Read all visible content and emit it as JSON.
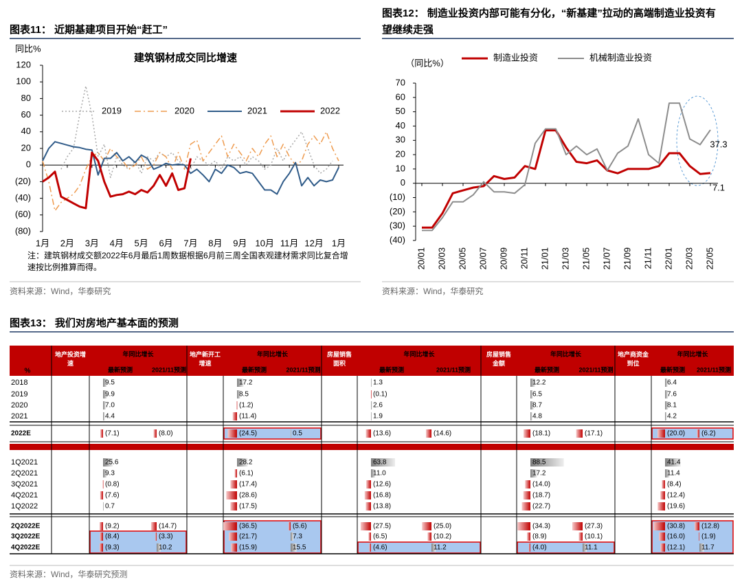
{
  "fig11": {
    "label": "图表11：",
    "title": "近期基建项目开始“赶工”",
    "note": "注：建筑钢材成交额2022年6月最后1周数据根据6月前三周全国表观建材需求同比复合增速按比例推算而得。",
    "source": "资料来源：Wind，华泰研究"
  },
  "fig12": {
    "label": "图表12：",
    "title": "制造业投资内部可能有分化，“新基建”拉动的高端制造业投资有望继续走强",
    "source": "资料来源：Wind，华泰研究"
  },
  "chart_data": [
    {
      "type": "line",
      "title": "建筑钢材成交同比增速",
      "ylabel": "同比%",
      "categories": [
        "1月",
        null,
        null,
        null,
        "2月",
        null,
        null,
        null,
        "3月",
        null,
        null,
        null,
        "4月",
        null,
        null,
        null,
        "5月",
        null,
        null,
        null,
        "6月",
        null,
        null,
        null,
        "7月",
        null,
        null,
        null,
        "8月",
        null,
        null,
        null,
        "9月",
        null,
        null,
        null,
        "10月",
        null,
        null,
        null,
        "11月",
        null,
        null,
        null,
        "12月",
        null,
        null,
        null,
        "1月"
      ],
      "series": [
        {
          "name": "2019",
          "color": "#a6a6a6",
          "linestyle": "dotted",
          "linewidth": 1.5,
          "values": [
            null,
            null,
            null,
            -5,
            10,
            20,
            60,
            95,
            60,
            10,
            25,
            -15,
            10,
            0,
            -5,
            5,
            -10,
            10,
            5,
            15,
            10,
            15,
            5,
            0,
            -5,
            10,
            5,
            0,
            5,
            -5,
            10,
            5,
            10,
            0,
            10,
            5,
            -5,
            0,
            20,
            5,
            20,
            30,
            40,
            20,
            0,
            -10,
            -5,
            5,
            null
          ]
        },
        {
          "name": "2020",
          "color": "#ee9a4d",
          "linestyle": "dashdot",
          "linewidth": 1.5,
          "values": [
            5,
            -20,
            -55,
            -45,
            -40,
            -35,
            -25,
            -5,
            10,
            15,
            5,
            20,
            10,
            5,
            -5,
            0,
            10,
            -5,
            0,
            15,
            10,
            -5,
            15,
            -5,
            25,
            30,
            5,
            15,
            25,
            35,
            10,
            25,
            15,
            5,
            20,
            10,
            25,
            35,
            10,
            25,
            10,
            0,
            5,
            25,
            35,
            25,
            40,
            20,
            5
          ]
        },
        {
          "name": "2021",
          "color": "#2e5a88",
          "linestyle": "solid",
          "linewidth": 2,
          "values": [
            5,
            20,
            28,
            26,
            24,
            22,
            21,
            19,
            18,
            -12,
            8,
            8,
            15,
            5,
            10,
            3,
            12,
            8,
            -5,
            -2,
            2,
            0,
            1,
            0,
            -10,
            -5,
            -12,
            -20,
            -5,
            -10,
            0,
            -3,
            -10,
            -8,
            -10,
            -20,
            -30,
            -30,
            -35,
            -20,
            -10,
            3,
            -25,
            -15,
            -25,
            -18,
            -20,
            -18,
            -3
          ]
        },
        {
          "name": "2022",
          "color": "#c00000",
          "linestyle": "solid",
          "linewidth": 3,
          "values": [
            -20,
            -15,
            -8,
            -38,
            -42,
            -46,
            -50,
            -52,
            15,
            5,
            -20,
            -38,
            -36,
            -35,
            -32,
            -35,
            -30,
            -33,
            -25,
            -12,
            -25,
            -10,
            -30,
            -28,
            8,
            null,
            null,
            null,
            null,
            null,
            null,
            null,
            null,
            null,
            null,
            null,
            null,
            null,
            null,
            null,
            null,
            null,
            null,
            null,
            null,
            null,
            null,
            null,
            null
          ]
        }
      ],
      "ylim": [
        -80,
        120
      ],
      "yticks": [
        120,
        100,
        80,
        60,
        40,
        20,
        0,
        {
          "value": -20,
          "label": "(20)"
        },
        {
          "value": -40,
          "label": "(40)"
        },
        {
          "value": -60,
          "label": "(60)"
        },
        {
          "value": -80,
          "label": "(80)"
        }
      ],
      "legend": "upper center"
    },
    {
      "type": "line",
      "ylabel": "（同比%）",
      "categories": [
        "20/01",
        null,
        "20/03",
        null,
        "20/05",
        null,
        "20/07",
        null,
        "20/09",
        null,
        "20/11",
        null,
        "21/01",
        null,
        "21/03",
        null,
        "21/05",
        null,
        "21/07",
        null,
        "21/09",
        null,
        "21/11",
        null,
        "22/01",
        null,
        "22/03",
        null,
        "22/05"
      ],
      "series": [
        {
          "name": "制造业投资",
          "color": "#c00000",
          "linestyle": "solid",
          "linewidth": 3,
          "values": [
            -31,
            -31,
            -21,
            -7,
            -5,
            -3,
            -2,
            5,
            3,
            4,
            12,
            10,
            37,
            37,
            25,
            15,
            14,
            16,
            9,
            7,
            10,
            10,
            10,
            12,
            21,
            21,
            12,
            6.5,
            7.1
          ]
        },
        {
          "name": "机械制造业投资",
          "color": "#8c8c8c",
          "linestyle": "solid",
          "linewidth": 2,
          "values": [
            -33,
            -33,
            -24,
            -13,
            -13,
            -8,
            1,
            -6,
            -6,
            -7,
            -1,
            28,
            38,
            38,
            20,
            26,
            20,
            24,
            9,
            21,
            26,
            45,
            20,
            14,
            56,
            56,
            31,
            27,
            37.3
          ]
        }
      ],
      "ylim": [
        -40,
        70
      ],
      "yticks": [
        70,
        60,
        50,
        40,
        30,
        20,
        10,
        0,
        {
          "value": -10,
          "label": "(10)"
        },
        {
          "value": -20,
          "label": "(20)"
        },
        {
          "value": -30,
          "label": "(30)"
        },
        {
          "value": -40,
          "label": "(40)"
        }
      ],
      "legend": "top",
      "last_value_labels": true
    }
  ],
  "fig13": {
    "label": "图表13：",
    "title": "我们对房地产基本面的预测",
    "corner": "%",
    "subheader": "年同比增长",
    "columns": [
      "最新预测",
      "2021/11预测"
    ],
    "groups": [
      "地产投资增速",
      "地产新开工增速",
      "房屋销售面积",
      "房屋销售金额",
      "地产商资金到位"
    ],
    "rows": [
      {
        "name": "2018",
        "values": [
          [
            9.5
          ],
          [
            17.2
          ],
          [
            1.3
          ],
          [
            12.2
          ],
          [
            6.4
          ]
        ],
        "value_labels": [
          [
            "9.5"
          ],
          [
            "17.2"
          ],
          [
            "1.3"
          ],
          [
            "12.2"
          ],
          [
            "6.4"
          ]
        ]
      },
      {
        "name": "2019",
        "values": [
          [
            9.9
          ],
          [
            8.5
          ],
          [
            -0.1
          ],
          [
            6.5
          ],
          [
            7.6
          ]
        ],
        "value_labels": [
          [
            "9.9"
          ],
          [
            "8.5"
          ],
          [
            "(0.1)"
          ],
          [
            "6.5"
          ],
          [
            "7.6"
          ]
        ]
      },
      {
        "name": "2020",
        "values": [
          [
            7
          ],
          [
            -1.2
          ],
          [
            2.6
          ],
          [
            8.7
          ],
          [
            8.1
          ]
        ],
        "value_labels": [
          [
            "7.0"
          ],
          [
            "(1.2)"
          ],
          [
            "2.6"
          ],
          [
            "8.7"
          ],
          [
            "8.1"
          ]
        ]
      },
      {
        "name": "2021",
        "values": [
          [
            4.4
          ],
          [
            -11.4
          ],
          [
            1.9
          ],
          [
            4.8
          ],
          [
            4.2
          ]
        ],
        "value_labels": [
          [
            "4.4"
          ],
          [
            "(11.4)"
          ],
          [
            "1.9"
          ],
          [
            "4.8"
          ],
          [
            "4.2"
          ]
        ]
      },
      {
        "name": "2022E",
        "values": [
          [
            -7.1,
            -8
          ],
          [
            -24.5,
            0.5
          ],
          [
            -13.6,
            -14.6
          ],
          [
            -18.1,
            -17.1
          ],
          [
            -20,
            -6.2
          ]
        ],
        "value_labels": [
          [
            "(7.1)",
            "(8.0)"
          ],
          [
            "(24.5)",
            "0.5"
          ],
          [
            "(13.6)",
            "(14.6)"
          ],
          [
            "(18.1)",
            "(17.1)"
          ],
          [
            "(20.0)",
            "(6.2)"
          ]
        ]
      },
      {
        "name": "1Q2021",
        "values": [
          [
            25.6
          ],
          [
            28.2
          ],
          [
            63.8
          ],
          [
            88.5
          ],
          [
            41.4
          ]
        ],
        "value_labels": [
          [
            "25.6"
          ],
          [
            "28.2"
          ],
          [
            "63.8"
          ],
          [
            "88.5"
          ],
          [
            "41.4"
          ]
        ]
      },
      {
        "name": "2Q2021",
        "values": [
          [
            9.3
          ],
          [
            -6.1
          ],
          [
            11
          ],
          [
            17.2
          ],
          [
            11.4
          ]
        ],
        "value_labels": [
          [
            "9.3"
          ],
          [
            "(6.1)"
          ],
          [
            "11.0"
          ],
          [
            "17.2"
          ],
          [
            "11.4"
          ]
        ]
      },
      {
        "name": "3Q2021",
        "values": [
          [
            -0.8
          ],
          [
            -17.4
          ],
          [
            -12.6
          ],
          [
            -14
          ],
          [
            -8.4
          ]
        ],
        "value_labels": [
          [
            "(0.8)"
          ],
          [
            "(17.4)"
          ],
          [
            "(12.6)"
          ],
          [
            "(14.0)"
          ],
          [
            "(8.4)"
          ]
        ]
      },
      {
        "name": "4Q2021",
        "values": [
          [
            -7.6
          ],
          [
            -28.6
          ],
          [
            -16.8
          ],
          [
            -18.7
          ],
          [
            -12.4
          ]
        ],
        "value_labels": [
          [
            "(7.6)"
          ],
          [
            "(28.6)"
          ],
          [
            "(16.8)"
          ],
          [
            "(18.7)"
          ],
          [
            "(12.4)"
          ]
        ]
      },
      {
        "name": "1Q2022",
        "values": [
          [
            0.7
          ],
          [
            -17.5
          ],
          [
            -13.8
          ],
          [
            -22.7
          ],
          [
            -19.6
          ]
        ],
        "value_labels": [
          [
            "0.7"
          ],
          [
            "(17.5)"
          ],
          [
            "(13.8)"
          ],
          [
            "(22.7)"
          ],
          [
            "(19.6)"
          ]
        ]
      },
      {
        "name": "2Q2022E",
        "values": [
          [
            -9.2,
            -14.7
          ],
          [
            -36.5,
            -5.6
          ],
          [
            -27.5,
            -25
          ],
          [
            -34.3,
            -27.3
          ],
          [
            -30.8,
            -12.8
          ]
        ],
        "value_labels": [
          [
            "(9.2)",
            "(14.7)"
          ],
          [
            "(36.5)",
            "(5.6)"
          ],
          [
            "(27.5)",
            "(25.0)"
          ],
          [
            "(34.3)",
            "(27.3)"
          ],
          [
            "(30.8)",
            "(12.8)"
          ]
        ]
      },
      {
        "name": "3Q2022E",
        "values": [
          [
            -8.4,
            -3.3
          ],
          [
            -21.7,
            7.3
          ],
          [
            -6.5,
            -10.2
          ],
          [
            -8.9,
            -10.1
          ],
          [
            -16,
            -1.9
          ]
        ],
        "value_labels": [
          [
            "(8.4)",
            "(3.3)"
          ],
          [
            "(21.7)",
            "7.3"
          ],
          [
            "(6.5)",
            "(10.2)"
          ],
          [
            "(8.9)",
            "(10.1)"
          ],
          [
            "(16.0)",
            "(1.9)"
          ]
        ]
      },
      {
        "name": "4Q2022E",
        "values": [
          [
            -9.3,
            10.2
          ],
          [
            -15.9,
            15.5
          ],
          [
            -4.6,
            11.2
          ],
          [
            -4,
            11.1
          ],
          [
            -12.1,
            11.7
          ]
        ],
        "value_labels": [
          [
            "(9.3)",
            "10.2"
          ],
          [
            "(15.9)",
            "15.5"
          ],
          [
            "(4.6)",
            "11.2"
          ],
          [
            "(4.0)",
            "11.1"
          ],
          [
            "(12.1)",
            "11.7"
          ]
        ]
      }
    ],
    "source": "资料来源：Wind，华泰研究预测"
  }
}
